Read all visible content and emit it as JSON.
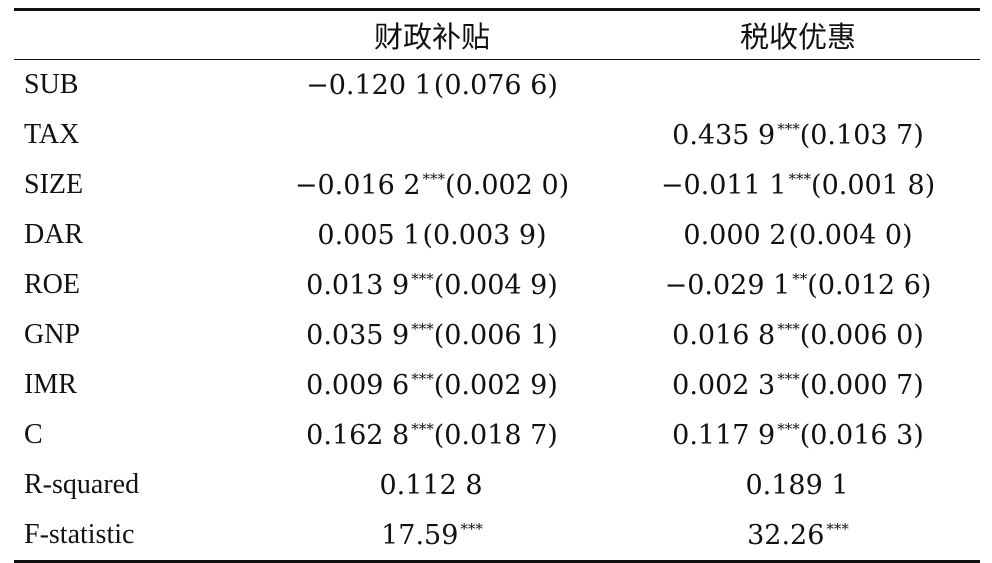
{
  "table": {
    "header": {
      "col1": "财政补贴",
      "col2": "税收优惠"
    },
    "rows": [
      {
        "label": "SUB",
        "col1": {
          "value": "−0.120 1",
          "stars": "",
          "se": "(0.076 6)"
        },
        "col2": {
          "value": "",
          "stars": "",
          "se": ""
        }
      },
      {
        "label": "TAX",
        "col1": {
          "value": "",
          "stars": "",
          "se": ""
        },
        "col2": {
          "value": "0.435 9",
          "stars": "***",
          "se": "(0.103 7)"
        }
      },
      {
        "label": "SIZE",
        "col1": {
          "value": "−0.016 2",
          "stars": "***",
          "se": "(0.002 0)"
        },
        "col2": {
          "value": "−0.011 1",
          "stars": "***",
          "se": "(0.001 8)"
        }
      },
      {
        "label": "DAR",
        "col1": {
          "value": "0.005 1",
          "stars": "",
          "se": "(0.003 9)"
        },
        "col2": {
          "value": "0.000 2",
          "stars": "",
          "se": "(0.004 0)"
        }
      },
      {
        "label": "ROE",
        "col1": {
          "value": "0.013 9",
          "stars": "***",
          "se": "(0.004 9)"
        },
        "col2": {
          "value": "−0.029 1",
          "stars": "**",
          "se": "(0.012 6)"
        }
      },
      {
        "label": "GNP",
        "col1": {
          "value": "0.035 9",
          "stars": "***",
          "se": "(0.006 1)"
        },
        "col2": {
          "value": "0.016 8",
          "stars": "***",
          "se": "(0.006 0)"
        }
      },
      {
        "label": "IMR",
        "col1": {
          "value": "0.009 6",
          "stars": "***",
          "se": "(0.002 9)"
        },
        "col2": {
          "value": "0.002 3",
          "stars": "***",
          "se": "(0.000 7)"
        }
      },
      {
        "label": "C",
        "col1": {
          "value": "0.162 8",
          "stars": "***",
          "se": "(0.018 7)"
        },
        "col2": {
          "value": "0.117 9",
          "stars": "***",
          "se": "(0.016 3)"
        }
      },
      {
        "label": "R-squared",
        "col1": {
          "value": "0.112 8",
          "stars": "",
          "se": ""
        },
        "col2": {
          "value": "0.189 1",
          "stars": "",
          "se": ""
        }
      },
      {
        "label": "F-statistic",
        "col1": {
          "value": "17.59",
          "stars": "***",
          "se": ""
        },
        "col2": {
          "value": "32.26",
          "stars": "***",
          "se": ""
        }
      }
    ]
  }
}
